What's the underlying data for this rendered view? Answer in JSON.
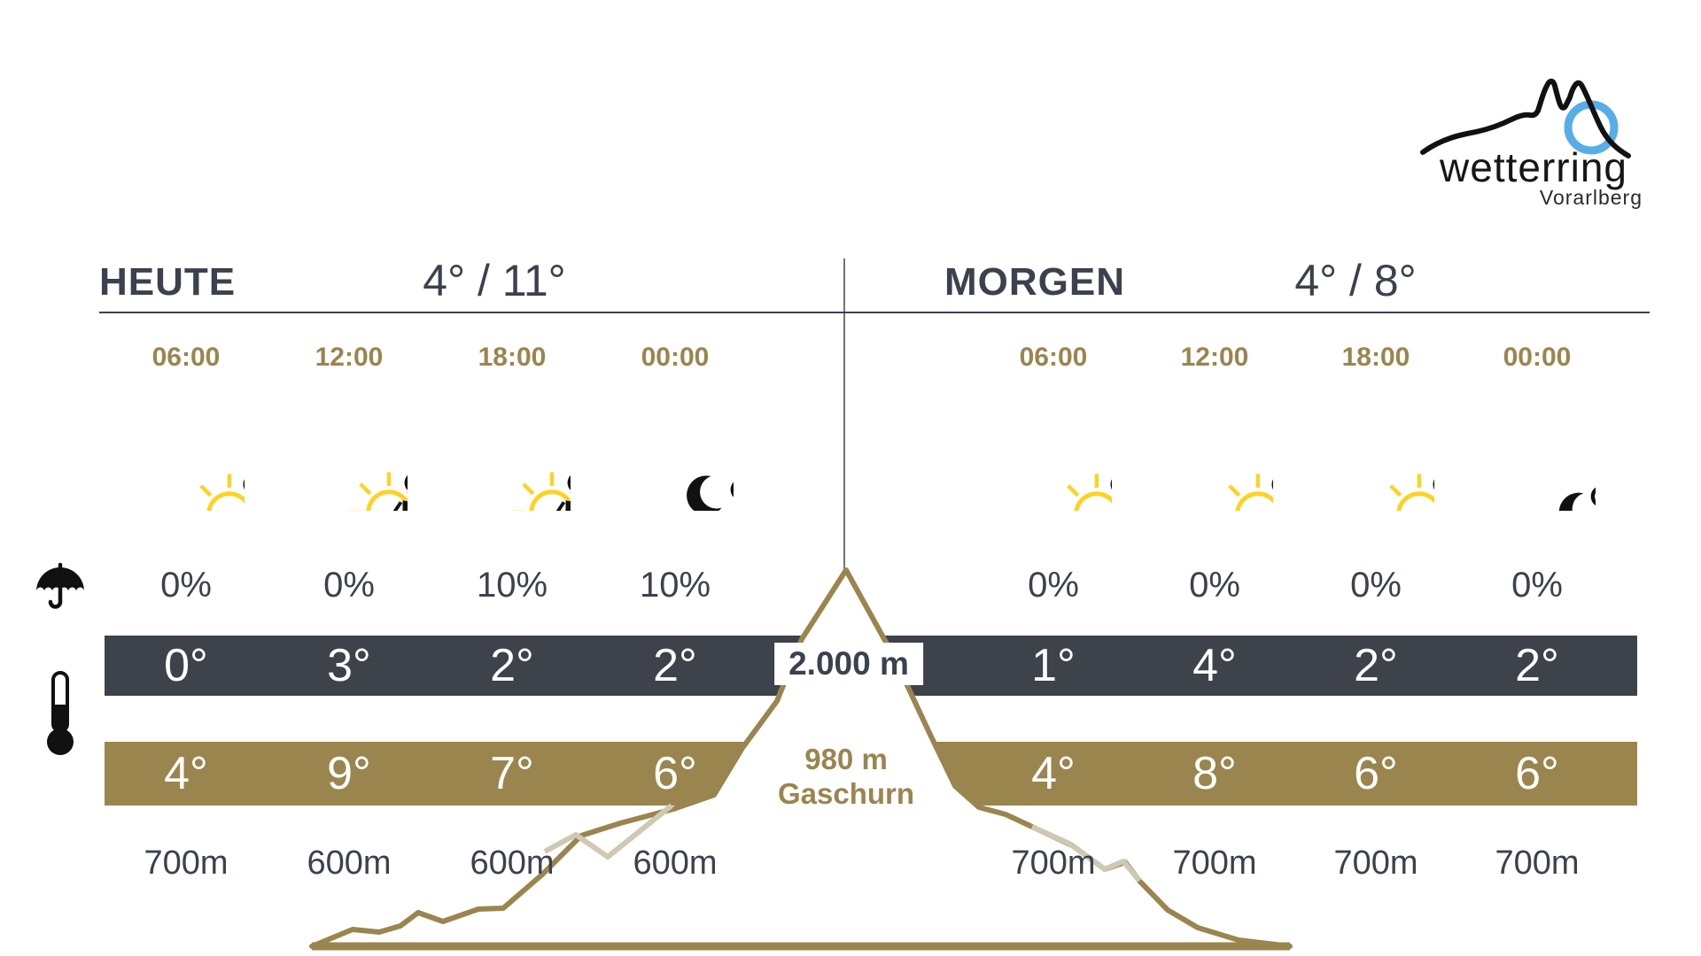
{
  "logo": {
    "brand": "wetterring",
    "region": "Vorarlberg"
  },
  "days": [
    {
      "label": "HEUTE",
      "minmax": "4° / 11°",
      "columns": [
        {
          "time": "06:00",
          "icon": "sun-cloud",
          "precip": "0%",
          "temp_high": "0°",
          "temp_low": "4°",
          "snowline": "700m"
        },
        {
          "time": "12:00",
          "icon": "sun-cloud-windsock",
          "precip": "0%",
          "temp_high": "3°",
          "temp_low": "9°",
          "snowline": "600m"
        },
        {
          "time": "18:00",
          "icon": "sun-cloud-windsock",
          "precip": "10%",
          "temp_high": "2°",
          "temp_low": "7°",
          "snowline": "600m"
        },
        {
          "time": "00:00",
          "icon": "moon-cloud-windsock",
          "precip": "10%",
          "temp_high": "2°",
          "temp_low": "6°",
          "snowline": "600m"
        }
      ]
    },
    {
      "label": "MORGEN",
      "minmax": "4° / 8°",
      "columns": [
        {
          "time": "06:00",
          "icon": "sun-cloud",
          "precip": "0%",
          "temp_high": "1°",
          "temp_low": "4°",
          "snowline": "700m"
        },
        {
          "time": "12:00",
          "icon": "sun-cloud",
          "precip": "0%",
          "temp_high": "4°",
          "temp_low": "8°",
          "snowline": "700m"
        },
        {
          "time": "18:00",
          "icon": "sun-cloud",
          "precip": "0%",
          "temp_high": "2°",
          "temp_low": "6°",
          "snowline": "700m"
        },
        {
          "time": "00:00",
          "icon": "moon-cloud",
          "precip": "0%",
          "temp_high": "2°",
          "temp_low": "6°",
          "snowline": "700m"
        }
      ]
    }
  ],
  "elevation": {
    "high_label": "2.000 m",
    "low_line1": "980 m",
    "low_line2": "Gaschurn"
  },
  "row_icons": {
    "precipitation": "umbrella-icon",
    "temperature": "thermometer-icon"
  },
  "colors": {
    "gold": "#9b854f",
    "dark_band": "#3d424b",
    "text": "#3b414d",
    "sun_yellow": "#ffd220",
    "logo_blue": "#57ade8",
    "light_ridge": "#cfc8b5",
    "white": "#ffffff"
  }
}
